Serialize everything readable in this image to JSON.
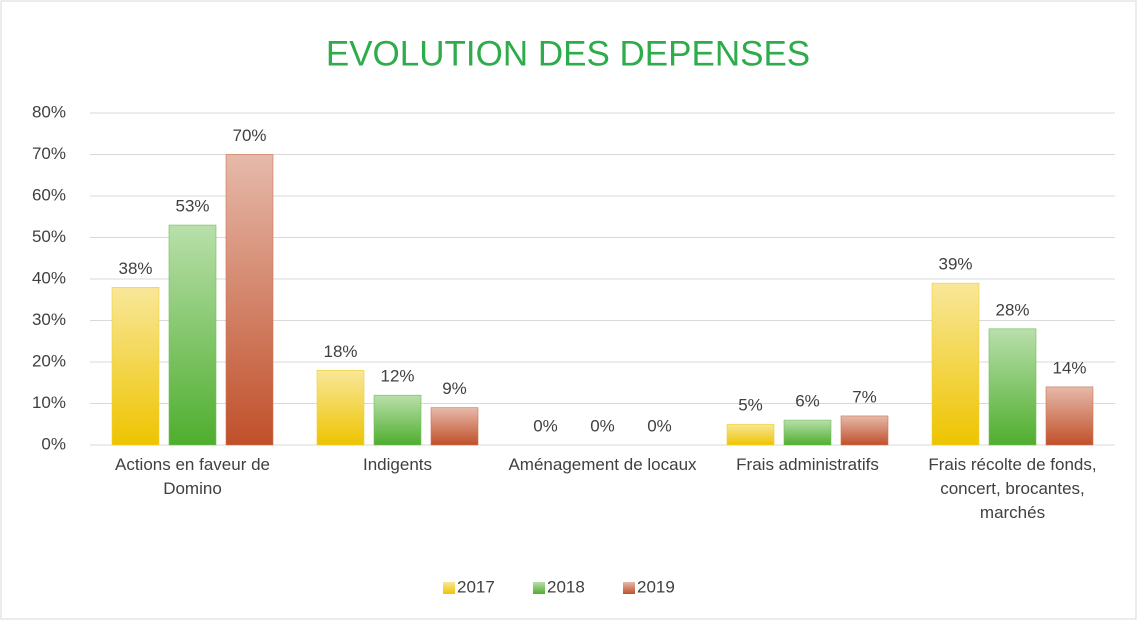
{
  "chart_data": {
    "type": "bar",
    "title": "EVOLUTION DES DEPENSES",
    "categories": [
      "Actions en faveur de Domino",
      "Indigents",
      "Aménagement de locaux",
      "Frais administratifs",
      "Frais récolte de fonds, concert, brocantes, marchés"
    ],
    "series": [
      {
        "name": "2017",
        "color": "#eec400",
        "values": [
          38,
          18,
          0,
          5,
          39
        ],
        "value_labels": [
          "38%",
          "18%",
          "0%",
          "5%",
          "39%"
        ]
      },
      {
        "name": "2018",
        "color": "#4fae2e",
        "values": [
          53,
          12,
          0,
          6,
          28
        ],
        "value_labels": [
          "53%",
          "12%",
          "0%",
          "6%",
          "28%"
        ]
      },
      {
        "name": "2019",
        "color": "#c0502a",
        "values": [
          70,
          9,
          0,
          7,
          14
        ],
        "value_labels": [
          "70%",
          "9%",
          "0%",
          "7%",
          "14%"
        ]
      }
    ],
    "ylim": [
      0,
      80
    ],
    "yticks": [
      {
        "value": 0,
        "label": "0%"
      },
      {
        "value": 10,
        "label": "10%"
      },
      {
        "value": 20,
        "label": "20%"
      },
      {
        "value": 30,
        "label": "30%"
      },
      {
        "value": 40,
        "label": "40%"
      },
      {
        "value": 50,
        "label": "50%"
      },
      {
        "value": 60,
        "label": "60%"
      },
      {
        "value": 70,
        "label": "70%"
      },
      {
        "value": 80,
        "label": "80%"
      }
    ],
    "grid": true,
    "legend": "bottom"
  }
}
